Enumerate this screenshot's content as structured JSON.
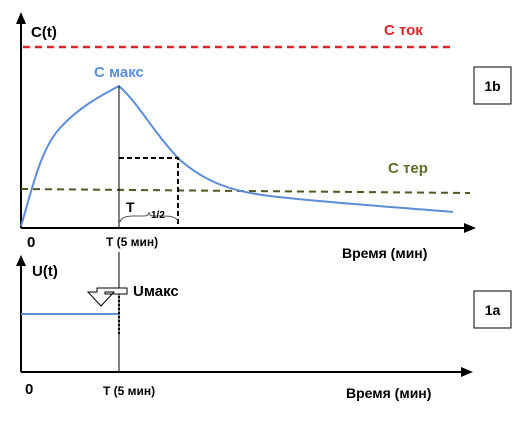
{
  "top": {
    "y_label": "C(t)",
    "c_tok_label": "С ток",
    "c_max_label": "С макс",
    "c_ter_label": "С тер",
    "panel_tag": "1b",
    "origin_label": "0",
    "t_label": "T (5 мин)",
    "half_life_label": "T",
    "half_life_sub": "1/2",
    "x_label": "Время (мин)"
  },
  "bottom": {
    "y_label": "U(t)",
    "u_max_label": "Uмакс",
    "panel_tag": "1a",
    "origin_label": "0",
    "t_label": "T (5 мин)",
    "x_label": "Время (мин)"
  },
  "colors": {
    "c_tok": "#d42a2a",
    "curve": "#5b8ed6",
    "c_ter": "#5a6e2a",
    "axis": "#000000"
  }
}
